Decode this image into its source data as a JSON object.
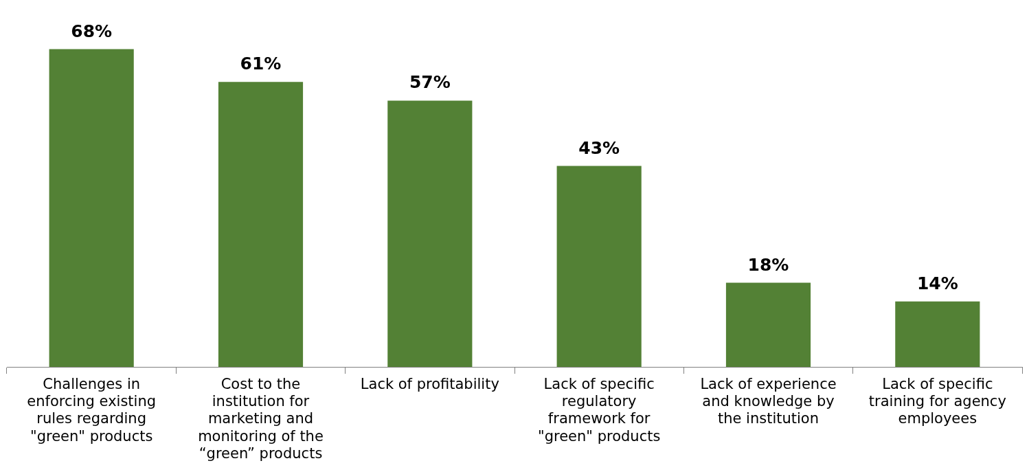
{
  "chart_data": {
    "type": "bar",
    "categories": [
      "Challenges in enforcing existing rules regarding \"green\" products",
      "Cost to the institution for marketing and monitoring of the “green” products",
      "Lack of profitability",
      "Lack of specific regulatory framework for \"green\" products",
      "Lack of experience and knowledge by the institution",
      "Lack of specific training for agency employees"
    ],
    "values": [
      68,
      61,
      57,
      43,
      18,
      14
    ],
    "value_labels": [
      "68%",
      "61%",
      "57%",
      "43%",
      "18%",
      "14%"
    ],
    "color": "#538135",
    "legend": false,
    "grid": false
  }
}
